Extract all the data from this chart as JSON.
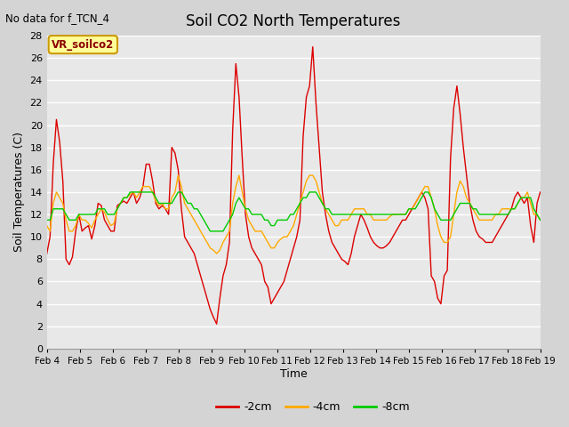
{
  "title": "Soil CO2 North Temperatures",
  "subtitle": "No data for f_TCN_4",
  "xlabel": "Time",
  "ylabel": "Soil Temperatures (C)",
  "ylim": [
    0,
    28
  ],
  "yticks": [
    0,
    2,
    4,
    6,
    8,
    10,
    12,
    14,
    16,
    18,
    20,
    22,
    24,
    26,
    28
  ],
  "x_labels": [
    "Feb 4",
    "Feb 5",
    "Feb 6",
    "Feb 7",
    "Feb 8",
    "Feb 9",
    "Feb 10",
    "Feb 11",
    "Feb 12",
    "Feb 13",
    "Feb 14",
    "Feb 15",
    "Feb 16",
    "Feb 17",
    "Feb 18",
    "Feb 19"
  ],
  "legend_label": "VR_soilco2",
  "legend_box_color": "#ffff99",
  "legend_box_edge": "#cc9900",
  "colors": {
    "neg2cm": "#dd0000",
    "neg4cm": "#ffaa00",
    "neg8cm": "#00cc00"
  },
  "line_labels": [
    "-2cm",
    "-4cm",
    "-8cm"
  ],
  "fig_bg": "#d4d4d4",
  "plot_bg": "#e8e8e8",
  "neg2cm": [
    8.5,
    10.0,
    16.5,
    20.5,
    18.5,
    15.0,
    8.0,
    7.5,
    8.2,
    10.5,
    12.0,
    10.5,
    10.8,
    11.0,
    9.8,
    11.0,
    13.0,
    12.8,
    11.5,
    11.0,
    10.5,
    10.5,
    12.8,
    13.0,
    13.2,
    13.0,
    13.5,
    14.0,
    13.0,
    13.5,
    14.5,
    16.5,
    16.5,
    15.0,
    13.0,
    12.5,
    12.8,
    12.5,
    12.0,
    18.0,
    17.5,
    16.0,
    12.5,
    10.0,
    9.5,
    9.0,
    8.5,
    7.5,
    6.5,
    5.5,
    4.5,
    3.5,
    2.8,
    2.2,
    4.5,
    6.5,
    7.5,
    9.5,
    19.5,
    25.5,
    22.5,
    17.0,
    12.0,
    10.0,
    9.0,
    8.5,
    8.0,
    7.5,
    6.0,
    5.5,
    4.0,
    4.5,
    5.0,
    5.5,
    6.0,
    7.0,
    8.0,
    9.0,
    10.0,
    11.5,
    19.0,
    22.5,
    23.5,
    27.0,
    22.0,
    18.0,
    14.0,
    12.0,
    10.5,
    9.5,
    9.0,
    8.5,
    8.0,
    7.8,
    7.5,
    8.5,
    10.0,
    11.0,
    12.0,
    11.5,
    10.8,
    10.0,
    9.5,
    9.2,
    9.0,
    9.0,
    9.2,
    9.5,
    10.0,
    10.5,
    11.0,
    11.5,
    11.5,
    12.0,
    12.5,
    13.0,
    13.5,
    14.0,
    13.5,
    12.5,
    6.5,
    6.0,
    4.5,
    4.0,
    6.5,
    7.0,
    17.0,
    21.5,
    23.5,
    21.0,
    18.0,
    15.5,
    13.0,
    11.5,
    10.5,
    10.0,
    9.8,
    9.5,
    9.5,
    9.5,
    10.0,
    10.5,
    11.0,
    11.5,
    12.0,
    12.5,
    13.5,
    14.0,
    13.5,
    13.0,
    13.5,
    11.0,
    9.5,
    13.0,
    14.0
  ],
  "neg4cm": [
    11.0,
    10.5,
    13.0,
    14.0,
    13.5,
    13.0,
    11.5,
    10.5,
    10.5,
    11.0,
    12.0,
    11.5,
    11.5,
    11.2,
    10.8,
    11.5,
    12.0,
    12.5,
    12.2,
    11.5,
    11.0,
    11.2,
    12.5,
    13.0,
    13.5,
    13.5,
    13.8,
    14.0,
    13.5,
    14.0,
    14.5,
    14.5,
    14.5,
    14.0,
    13.2,
    12.8,
    13.0,
    12.5,
    12.5,
    13.5,
    14.0,
    15.5,
    14.5,
    13.0,
    12.5,
    12.0,
    11.5,
    11.0,
    10.5,
    10.0,
    9.5,
    9.0,
    8.8,
    8.5,
    8.8,
    9.5,
    10.0,
    10.5,
    13.0,
    14.5,
    15.5,
    14.0,
    12.5,
    11.5,
    11.0,
    10.5,
    10.5,
    10.5,
    10.0,
    9.5,
    9.0,
    9.0,
    9.5,
    9.8,
    10.0,
    10.0,
    10.5,
    11.0,
    12.0,
    13.0,
    14.0,
    15.0,
    15.5,
    15.5,
    15.0,
    14.0,
    13.0,
    12.5,
    12.0,
    11.5,
    11.0,
    11.0,
    11.5,
    11.5,
    11.5,
    12.0,
    12.5,
    12.5,
    12.5,
    12.5,
    12.0,
    12.0,
    11.5,
    11.5,
    11.5,
    11.5,
    11.5,
    11.8,
    12.0,
    12.0,
    12.0,
    12.0,
    12.0,
    12.5,
    12.5,
    13.0,
    13.5,
    14.0,
    14.5,
    14.5,
    13.5,
    12.5,
    11.0,
    10.0,
    9.5,
    9.5,
    10.0,
    12.0,
    14.0,
    15.0,
    14.5,
    13.5,
    13.0,
    12.5,
    12.0,
    11.5,
    11.5,
    11.5,
    11.5,
    11.5,
    12.0,
    12.0,
    12.5,
    12.5,
    12.5,
    12.5,
    12.5,
    13.0,
    13.5,
    13.5,
    14.0,
    13.0,
    12.0,
    12.0,
    11.5
  ],
  "neg8cm": [
    11.5,
    11.5,
    12.5,
    12.5,
    12.5,
    12.5,
    12.0,
    11.5,
    11.5,
    11.5,
    12.0,
    12.0,
    12.0,
    12.0,
    12.0,
    12.0,
    12.5,
    12.5,
    12.5,
    12.0,
    12.0,
    12.0,
    12.5,
    13.0,
    13.5,
    13.5,
    14.0,
    14.0,
    14.0,
    14.0,
    14.0,
    14.0,
    14.0,
    14.0,
    13.5,
    13.0,
    13.0,
    13.0,
    13.0,
    13.0,
    13.5,
    14.0,
    14.0,
    13.5,
    13.0,
    13.0,
    12.5,
    12.5,
    12.0,
    11.5,
    11.0,
    10.5,
    10.5,
    10.5,
    10.5,
    10.5,
    11.0,
    11.5,
    12.0,
    13.0,
    13.5,
    13.0,
    12.5,
    12.5,
    12.0,
    12.0,
    12.0,
    12.0,
    11.5,
    11.5,
    11.0,
    11.0,
    11.5,
    11.5,
    11.5,
    11.5,
    12.0,
    12.0,
    12.5,
    13.0,
    13.5,
    13.5,
    14.0,
    14.0,
    14.0,
    13.5,
    13.0,
    12.5,
    12.5,
    12.0,
    12.0,
    12.0,
    12.0,
    12.0,
    12.0,
    12.0,
    12.0,
    12.0,
    12.0,
    12.0,
    12.0,
    12.0,
    12.0,
    12.0,
    12.0,
    12.0,
    12.0,
    12.0,
    12.0,
    12.0,
    12.0,
    12.0,
    12.0,
    12.5,
    12.5,
    12.5,
    13.0,
    13.5,
    14.0,
    14.0,
    13.5,
    12.5,
    12.0,
    11.5,
    11.5,
    11.5,
    11.5,
    12.0,
    12.5,
    13.0,
    13.0,
    13.0,
    13.0,
    12.5,
    12.5,
    12.0,
    12.0,
    12.0,
    12.0,
    12.0,
    12.0,
    12.0,
    12.0,
    12.0,
    12.0,
    12.5,
    12.5,
    13.0,
    13.5,
    13.5,
    13.5,
    13.5,
    12.5,
    12.0,
    11.5
  ]
}
